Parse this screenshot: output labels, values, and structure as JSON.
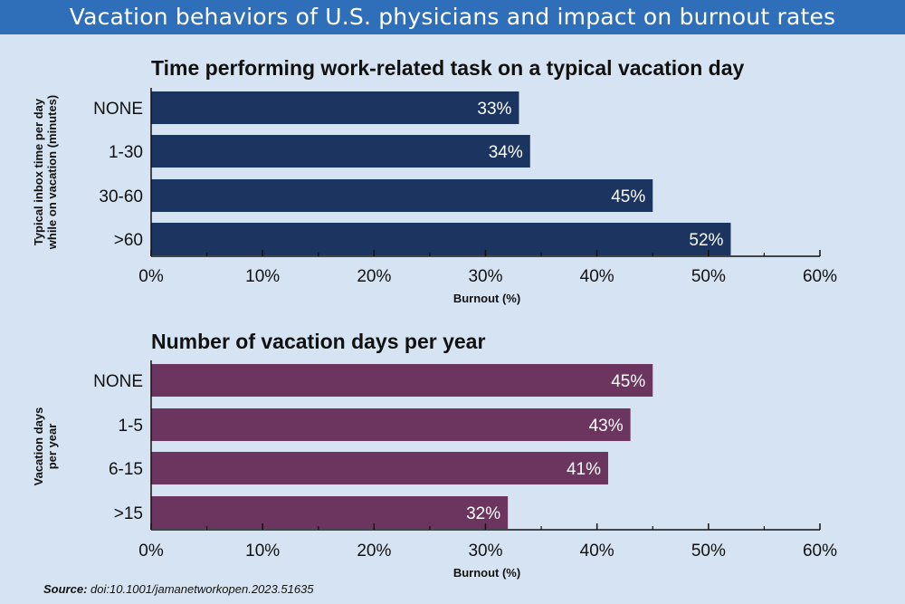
{
  "header": {
    "title": "Vacation behaviors of U.S. physicians and impact on burnout rates"
  },
  "colors": {
    "banner": "#2f6fba",
    "background": "#d6e3f2",
    "chart1_bar": "#1b3560",
    "chart2_bar": "#6b3560"
  },
  "chart_data": [
    {
      "type": "bar",
      "orientation": "horizontal",
      "title": "Time performing work-related task on a typical vacation day",
      "ylabel": "Typical inbox time per day while on vacation (minutes)",
      "ylabel_lines": [
        "Typical inbox time per day",
        "while on vacation (minutes)"
      ],
      "xlabel": "Burnout (%)",
      "categories": [
        "NONE",
        "1-30",
        "30-60",
        ">60"
      ],
      "values": [
        33,
        34,
        45,
        52
      ],
      "value_labels": [
        "33%",
        "34%",
        "45%",
        "52%"
      ],
      "xlim": [
        0,
        60
      ],
      "xticks": [
        "0%",
        "10%",
        "20%",
        "30%",
        "40%",
        "50%",
        "60%"
      ]
    },
    {
      "type": "bar",
      "orientation": "horizontal",
      "title": "Number of vacation days per year",
      "ylabel": "Vacation days per year",
      "ylabel_lines": [
        "Vacation days",
        "per year"
      ],
      "xlabel": "Burnout (%)",
      "categories": [
        "NONE",
        "1-5",
        "6-15",
        ">15"
      ],
      "values": [
        45,
        43,
        41,
        32
      ],
      "value_labels": [
        "45%",
        "43%",
        "41%",
        "32%"
      ],
      "xlim": [
        0,
        60
      ],
      "xticks": [
        "0%",
        "10%",
        "20%",
        "30%",
        "40%",
        "50%",
        "60%"
      ]
    }
  ],
  "footer": {
    "source_label": "Source:",
    "source_text": "doi:10.1001/jamanetworkopen.2023.51635"
  }
}
